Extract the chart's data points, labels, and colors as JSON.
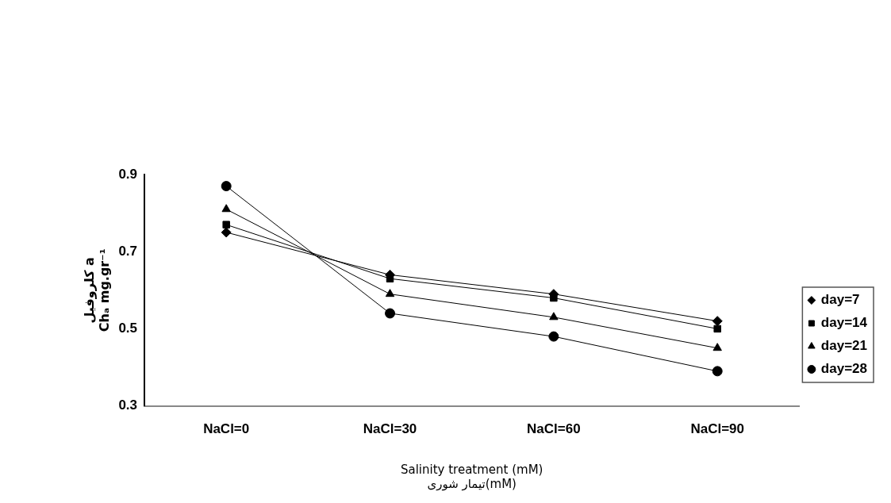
{
  "chart_data": {
    "type": "line",
    "xlabel": "Salinity treatment (mM)\nتیمار شوری(mM)",
    "ylabel": "کلروفیل a\nChₐ mg.gr⁻¹",
    "categories": [
      "NaCl=0",
      "NaCl=30",
      "NaCl=60",
      "NaCl=90"
    ],
    "series": [
      {
        "name": "day=7",
        "color": "#000000",
        "marker": "diamond",
        "values": [
          0.75,
          0.64,
          0.59,
          0.52
        ]
      },
      {
        "name": "day=14",
        "color": "#000000",
        "marker": "square",
        "values": [
          0.77,
          0.63,
          0.58,
          0.5
        ]
      },
      {
        "name": "day=21",
        "color": "#000000",
        "marker": "triangle",
        "values": [
          0.81,
          0.59,
          0.53,
          0.45
        ]
      },
      {
        "name": "day=28",
        "color": "#000000",
        "marker": "circle",
        "values": [
          0.87,
          0.54,
          0.48,
          0.39
        ]
      }
    ],
    "ylim": [
      0.3,
      0.9
    ],
    "yticks": [
      0.3,
      0.5,
      0.7,
      0.9
    ],
    "grid": false,
    "legend": "right",
    "line_style": "solid"
  }
}
